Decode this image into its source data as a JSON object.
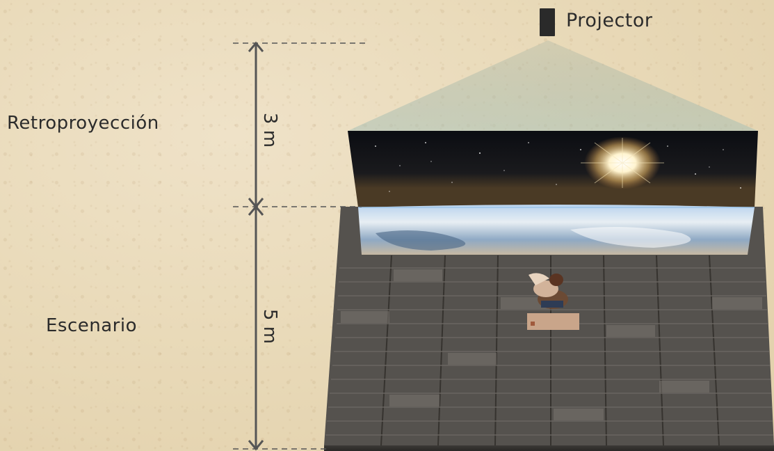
{
  "labels": {
    "projector": "Projector",
    "retroproyeccion": "Retroproyección",
    "escenario": "Escenario",
    "screen_height": "3 m",
    "stage_depth": "5 m"
  },
  "colors": {
    "paper": "#e9dab9",
    "beam": "#9fb3a8",
    "stage_dark": "#4a4744",
    "stage_light": "#6f6b66",
    "dimension_line": "#555555"
  },
  "icons": {
    "projector": "projector-icon"
  }
}
